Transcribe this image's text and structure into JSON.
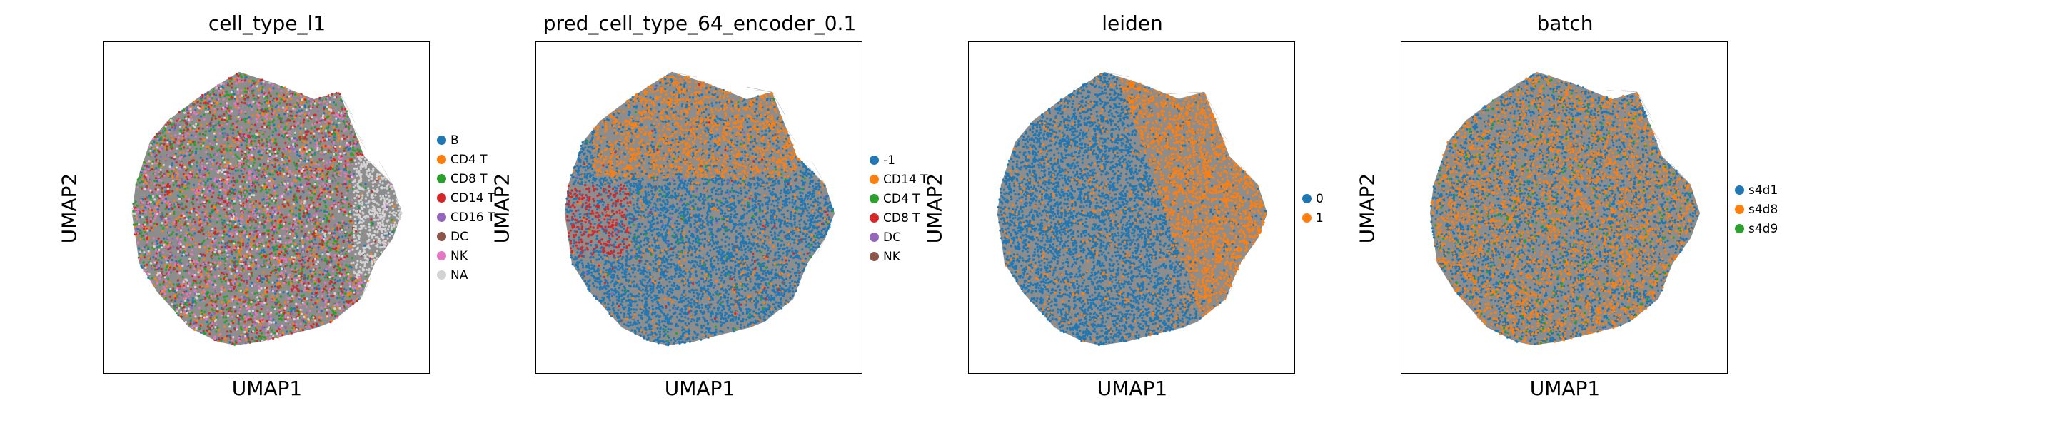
{
  "chart_data": [
    {
      "type": "scatter",
      "title": "cell_type_l1",
      "xlabel": "UMAP1",
      "ylabel": "UMAP2",
      "grid": false,
      "legend_placement": "right",
      "series": [
        {
          "name": "B",
          "color": "#1f77b4"
        },
        {
          "name": "CD4 T",
          "color": "#ff7f0e"
        },
        {
          "name": "CD8 T",
          "color": "#2ca02c"
        },
        {
          "name": "CD14 T",
          "color": "#d62728"
        },
        {
          "name": "CD16 T",
          "color": "#9467bd"
        },
        {
          "name": "DC",
          "color": "#8c564b"
        },
        {
          "name": "NK",
          "color": "#e377c2"
        },
        {
          "name": "NA",
          "color": "#d3d3d3"
        }
      ]
    },
    {
      "type": "scatter",
      "title": "pred_cell_type_64_encoder_0.1",
      "xlabel": "UMAP1",
      "ylabel": "UMAP2",
      "grid": false,
      "legend_placement": "right",
      "series": [
        {
          "name": "-1",
          "color": "#1f77b4"
        },
        {
          "name": "CD14 T",
          "color": "#ff7f0e"
        },
        {
          "name": "CD4 T",
          "color": "#2ca02c"
        },
        {
          "name": "CD8 T",
          "color": "#d62728"
        },
        {
          "name": "DC",
          "color": "#9467bd"
        },
        {
          "name": "NK",
          "color": "#8c564b"
        }
      ]
    },
    {
      "type": "scatter",
      "title": "leiden",
      "xlabel": "UMAP1",
      "ylabel": "UMAP2",
      "grid": false,
      "legend_placement": "right",
      "series": [
        {
          "name": "0",
          "color": "#1f77b4"
        },
        {
          "name": "1",
          "color": "#ff7f0e"
        }
      ]
    },
    {
      "type": "scatter",
      "title": "batch",
      "xlabel": "UMAP1",
      "ylabel": "UMAP2",
      "grid": false,
      "legend_placement": "right",
      "series": [
        {
          "name": "s4d1",
          "color": "#1f77b4"
        },
        {
          "name": "s4d8",
          "color": "#ff7f0e"
        },
        {
          "name": "s4d9",
          "color": "#2ca02c"
        }
      ]
    }
  ]
}
